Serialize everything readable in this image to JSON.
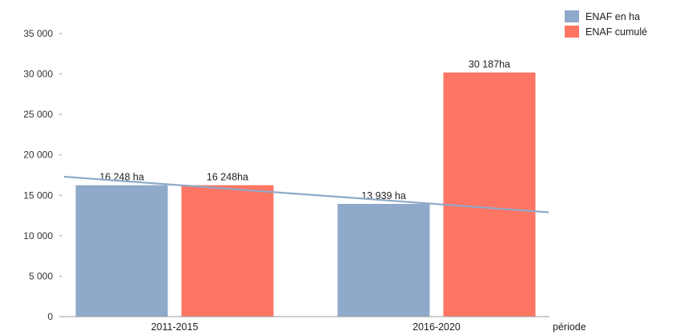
{
  "chart_data": {
    "type": "bar",
    "categories": [
      "2011-2015",
      "2016-2020"
    ],
    "xlabel": "période",
    "ylabel": "",
    "ylim": [
      0,
      35000
    ],
    "yticks": [
      0,
      5000,
      10000,
      15000,
      20000,
      25000,
      30000,
      35000
    ],
    "ytick_labels": [
      "0",
      "5 000",
      "10 000",
      "15 000",
      "20 000",
      "25 000",
      "30 000",
      "35 000"
    ],
    "grid": false,
    "legend_position": "top-right",
    "series": [
      {
        "name": "ENAF en ha",
        "color": "#8ea9c9",
        "values": [
          16248,
          13939
        ],
        "labels": [
          "16 248 ha",
          "13 939 ha"
        ]
      },
      {
        "name": "ENAF cumulé",
        "color": "#ff7563",
        "values": [
          16248,
          30187
        ],
        "labels": [
          "16 248ha",
          "30 187ha"
        ]
      }
    ],
    "trendline": {
      "series": "ENAF en ha",
      "type": "linear",
      "color": "#8ea9c9",
      "start_value": 17300,
      "end_value": 12900
    }
  }
}
